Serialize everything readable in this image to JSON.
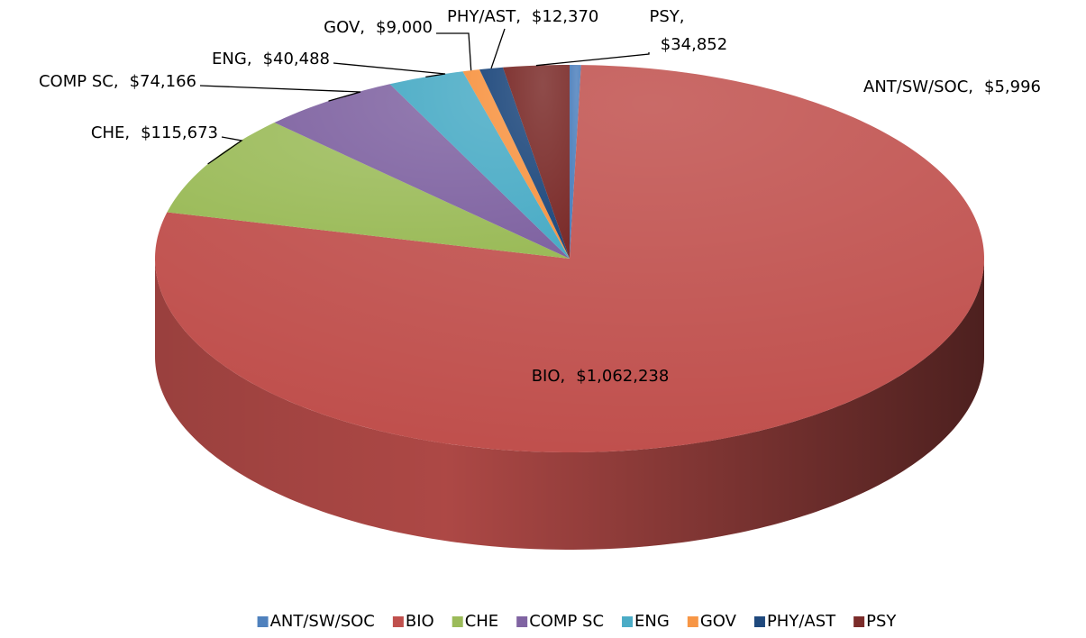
{
  "chart_data": {
    "type": "pie3d",
    "categories": [
      "ANT/SW/SOC",
      "BIO",
      "CHE",
      "COMP SC",
      "ENG",
      "GOV",
      "PHY/AST",
      "PSY"
    ],
    "values": [
      5996,
      1062238,
      115673,
      74166,
      40488,
      9000,
      12370,
      34852
    ],
    "value_labels": [
      "$5,996",
      "$1,062,238",
      "$115,673",
      "$74,166",
      "$40,488",
      "$9,000",
      "$12,370",
      "$34,852"
    ],
    "label_separator": ",",
    "colors": [
      "#4f81bd",
      "#c0504d",
      "#9bbb59",
      "#8064a2",
      "#4bacc6",
      "#f79646",
      "#1f497d",
      "#7b2c2a"
    ],
    "legend": "bottom"
  }
}
